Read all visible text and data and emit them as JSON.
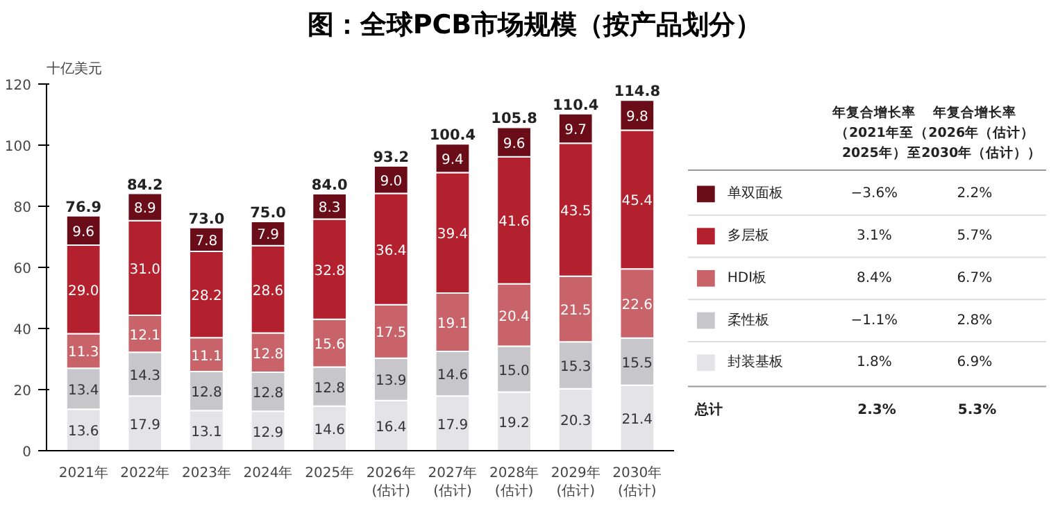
{
  "chart_data": {
    "type": "bar",
    "stacked": true,
    "title": "图：全球PCB市场规模（按产品划分）",
    "ylabel": "十亿美元",
    "categories": [
      "2021年",
      "2022年",
      "2023年",
      "2024年",
      "2025年",
      "2026年\n(估计)",
      "2027年\n(估计)",
      "2028年\n(估计)",
      "2029年\n(估计)",
      "2030年\n(估计)"
    ],
    "series": [
      {
        "name": "封装基板",
        "color": "#e4e4e8",
        "values": [
          13.6,
          17.9,
          13.1,
          12.9,
          14.6,
          16.4,
          17.9,
          19.2,
          20.3,
          21.4
        ],
        "value_labels": [
          "13.6",
          "17.9",
          "13.1",
          "12.9",
          "14.6",
          "16.4",
          "17.9",
          "19.2",
          "20.3",
          "21.4"
        ]
      },
      {
        "name": "柔性板",
        "color": "#c6c6cb",
        "values": [
          13.4,
          14.3,
          12.8,
          12.8,
          12.8,
          13.9,
          14.6,
          15.0,
          15.3,
          15.5
        ],
        "value_labels": [
          "13.4",
          "14.3",
          "12.8",
          "12.8",
          "12.8",
          "13.9",
          "14.6",
          "15.0",
          "15.3",
          "15.5"
        ]
      },
      {
        "name": "HDI板",
        "color": "#c8636a",
        "values": [
          11.3,
          12.1,
          11.1,
          12.8,
          15.6,
          17.5,
          19.1,
          20.4,
          21.5,
          22.6
        ],
        "value_labels": [
          "11.3",
          "12.1",
          "11.1",
          "12.8",
          "15.6",
          "17.5",
          "19.1",
          "20.4",
          "21.5",
          "22.6"
        ]
      },
      {
        "name": "多层板",
        "color": "#b3202e",
        "values": [
          29.0,
          31.0,
          28.2,
          28.6,
          32.8,
          36.4,
          39.4,
          41.6,
          43.5,
          45.4
        ],
        "value_labels": [
          "29.0",
          "31.0",
          "28.2",
          "28.6",
          "32.8",
          "36.4",
          "39.4",
          "41.6",
          "43.5",
          "45.4"
        ]
      },
      {
        "name": "单双面板",
        "color": "#6a0d18",
        "values": [
          9.6,
          8.9,
          7.8,
          7.9,
          8.3,
          9.0,
          9.4,
          9.6,
          9.7,
          9.8
        ],
        "value_labels": [
          "9.6",
          "8.9",
          "7.8",
          "7.9",
          "8.3",
          "9.0",
          "9.4",
          "9.6",
          "9.7",
          "9.8"
        ]
      }
    ],
    "totals": [
      "76.9",
      "84.2",
      "73.0",
      "75.0",
      "84.0",
      "93.2",
      "100.4",
      "105.8",
      "110.4",
      "114.8"
    ],
    "ylim": [
      0,
      120
    ],
    "yticks": [
      0,
      20,
      40,
      60,
      80,
      100,
      120
    ],
    "grid": false,
    "legend": "right",
    "annotations": [
      "年复合增长率",
      "（2021年至",
      "2025年）",
      "年复合增长率",
      "（2026年（估计）",
      "至2030年（估计））",
      "−3.6%",
      "2.2%",
      "3.1%",
      "5.7%",
      "8.4%",
      "6.7%",
      "−1.1%",
      "2.8%",
      "1.8%",
      "6.9%",
      "总计",
      "2.3%",
      "5.3%"
    ]
  }
}
